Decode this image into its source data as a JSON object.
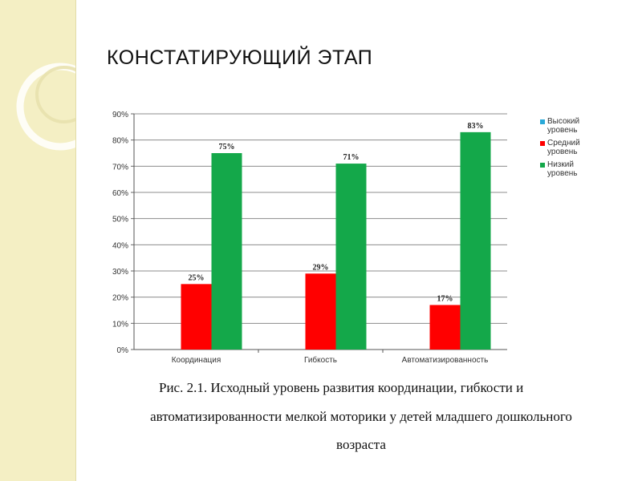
{
  "slide": {
    "title": "КОНСТАТИРУЮЩИЙ ЭТАП"
  },
  "caption": {
    "line1": "Рис. 2.1. Исходный уровень развития координации, гибкости и",
    "line2": "автоматизированности мелкой моторики у детей младшего дошкольного",
    "line3": "возраста"
  },
  "colors": {
    "background": "#ffffff",
    "side_band": "#f4efc4",
    "high": "#2aa9d8",
    "medium": "#ff0000",
    "low": "#14a84a"
  },
  "chart_data": {
    "type": "bar",
    "categories": [
      "Координация",
      "Гибкость",
      "Автоматизированность"
    ],
    "series": [
      {
        "name": "Высокий уровень",
        "values": [
          0,
          0,
          0
        ],
        "labels": [
          "",
          "",
          ""
        ],
        "color": "#2aa9d8"
      },
      {
        "name": "Средний уровень",
        "values": [
          25,
          29,
          17
        ],
        "labels": [
          "25%",
          "29%",
          "17%"
        ],
        "color": "#ff0000"
      },
      {
        "name": "Низкий уровень",
        "values": [
          75,
          71,
          83
        ],
        "labels": [
          "75%",
          "71%",
          "83%"
        ],
        "color": "#14a84a"
      }
    ],
    "ylim": [
      0,
      90
    ],
    "yticks": [
      "0%",
      "10%",
      "20%",
      "30%",
      "40%",
      "50%",
      "60%",
      "70%",
      "80%",
      "90%"
    ],
    "grid": true,
    "legend_position": "right",
    "xlabel": "",
    "ylabel": ""
  }
}
